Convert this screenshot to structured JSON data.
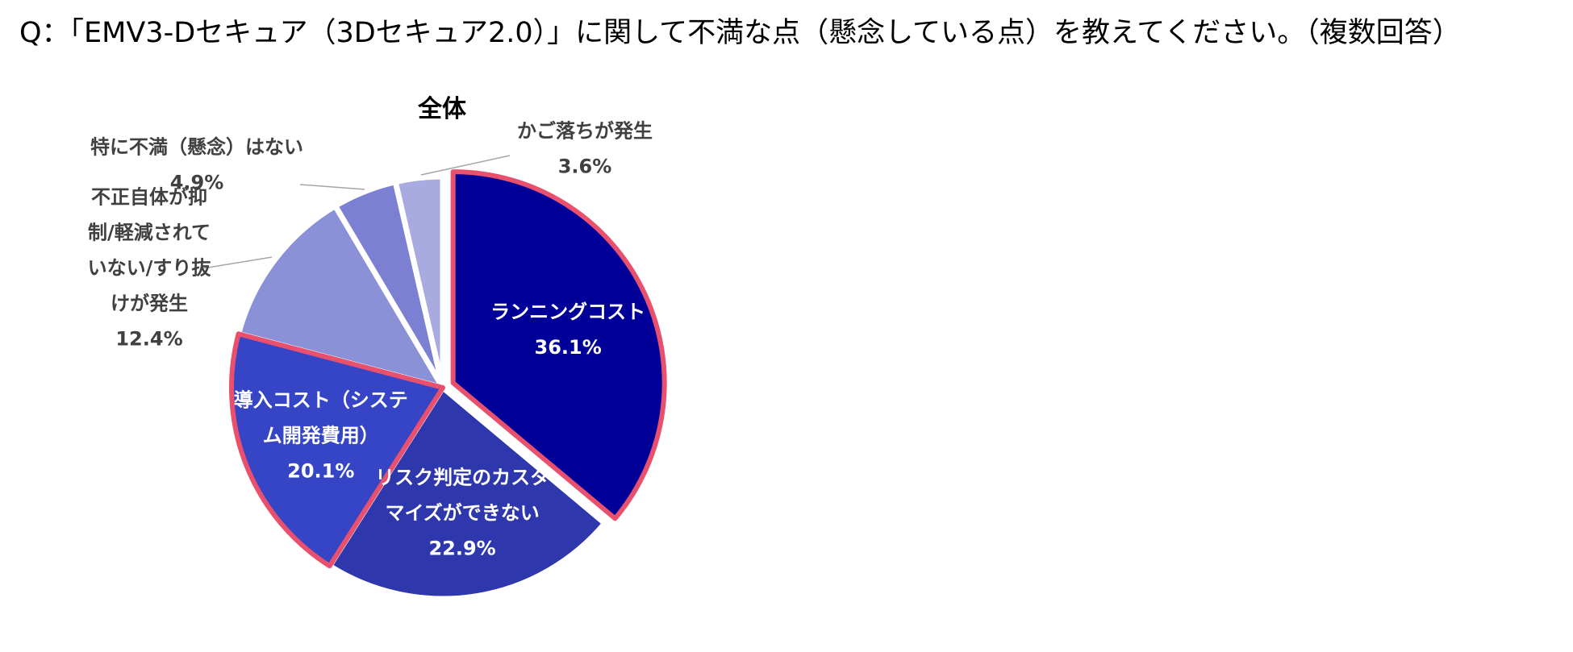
{
  "question": "Q：「EMV3-Dセキュア（3Dセキュア2.0）」に関して不満な点（懸念している点）を教えてください。（複数回答）",
  "chart_data": {
    "type": "pie",
    "title": "全体",
    "slices": [
      {
        "label": [
          "ランニングコスト"
        ],
        "value": 36.1,
        "value_text": "36.1%",
        "color": "#000099",
        "highlight": true,
        "label_inside": true
      },
      {
        "label": [
          "リスク判定のカスタ",
          "マイズができない"
        ],
        "value": 22.9,
        "value_text": "22.9%",
        "color": "#2E37AC",
        "highlight": false,
        "label_inside": true
      },
      {
        "label": [
          "導入コスト（システ",
          "ム開発費用）"
        ],
        "value": 20.1,
        "value_text": "20.1%",
        "color": "#3545C6",
        "highlight": true,
        "label_inside": true
      },
      {
        "label": [
          "不正自体が抑",
          "制/軽減されて",
          "いない/すり抜",
          "けが発生"
        ],
        "value": 12.4,
        "value_text": "12.4%",
        "color": "#8B91D7",
        "highlight": false,
        "label_inside": false
      },
      {
        "label": [
          "特に不満（懸念）はない"
        ],
        "value": 4.9,
        "value_text": "4.9%",
        "color": "#7B80D2",
        "highlight": false,
        "label_inside": false
      },
      {
        "label": [
          "かご落ちが発生"
        ],
        "value": 3.6,
        "value_text": "3.6%",
        "color": "#A9AADF",
        "highlight": false,
        "label_inside": false
      }
    ],
    "highlight_color": "#E8506E",
    "inside_text_color": "#ffffff",
    "outside_text_color": "#404040",
    "leader_color": "#A6A6A6"
  }
}
